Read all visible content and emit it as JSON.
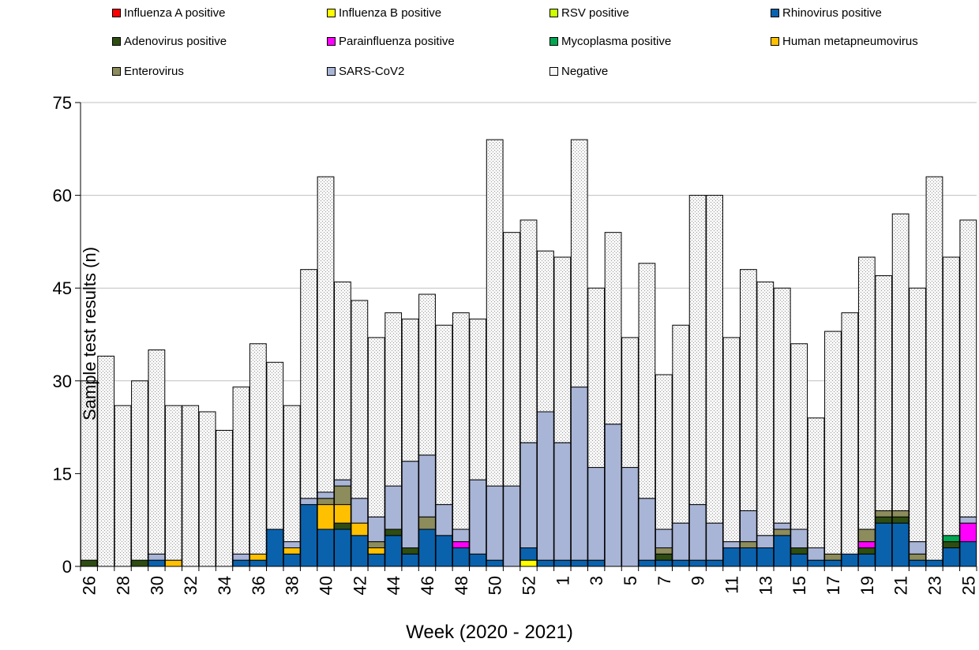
{
  "chart_data": {
    "type": "stacked-bar",
    "xlabel": "Week (2020 - 2021)",
    "ylabel": "Sample test results (n)",
    "ylim": [
      0,
      75
    ],
    "yticks": [
      0,
      15,
      30,
      45,
      60,
      75
    ],
    "grid": true,
    "legend_position": "top",
    "categories": [
      "26",
      "27",
      "28",
      "29",
      "30",
      "31",
      "32",
      "33",
      "34",
      "35",
      "36",
      "37",
      "38",
      "39",
      "40",
      "41",
      "42",
      "43",
      "44",
      "45",
      "46",
      "47",
      "48",
      "49",
      "50",
      "51",
      "52",
      "53",
      "1",
      "2",
      "3",
      "4",
      "5",
      "6",
      "7",
      "8",
      "9",
      "10",
      "11",
      "12",
      "13",
      "14",
      "15",
      "16",
      "17",
      "18",
      "19",
      "20",
      "21",
      "22",
      "23",
      "24",
      "25"
    ],
    "tick_labels": [
      "26",
      "",
      "28",
      "",
      "30",
      "",
      "32",
      "",
      "34",
      "",
      "36",
      "",
      "38",
      "",
      "40",
      "",
      "42",
      "",
      "44",
      "",
      "46",
      "",
      "48",
      "",
      "50",
      "",
      "52",
      "",
      "1",
      "",
      "3",
      "",
      "5",
      "",
      "7",
      "",
      "9",
      "",
      "11",
      "",
      "13",
      "",
      "15",
      "",
      "17",
      "",
      "19",
      "",
      "21",
      "",
      "23",
      "",
      "25"
    ],
    "series": [
      {
        "name": "Influenza A positive",
        "color": "#ff0000",
        "values": [
          0,
          0,
          0,
          0,
          0,
          0,
          0,
          0,
          0,
          0,
          0,
          0,
          0,
          0,
          0,
          0,
          0,
          0,
          0,
          0,
          0,
          0,
          0,
          0,
          0,
          0,
          0,
          0,
          0,
          0,
          0,
          0,
          0,
          0,
          0,
          0,
          0,
          0,
          0,
          0,
          0,
          0,
          0,
          0,
          0,
          0,
          0,
          0,
          0,
          0,
          0,
          0,
          0
        ]
      },
      {
        "name": "Influenza B positive",
        "color": "#ffff00",
        "values": [
          0,
          0,
          0,
          0,
          0,
          0,
          0,
          0,
          0,
          0,
          0,
          0,
          0,
          0,
          0,
          0,
          0,
          0,
          0,
          0,
          0,
          0,
          0,
          0,
          0,
          0,
          1,
          0,
          0,
          0,
          0,
          0,
          0,
          0,
          0,
          0,
          0,
          0,
          0,
          0,
          0,
          0,
          0,
          0,
          0,
          0,
          0,
          0,
          0,
          0,
          0,
          0,
          0
        ]
      },
      {
        "name": "RSV positive",
        "color": "#ccff00",
        "values": [
          0,
          0,
          0,
          0,
          0,
          0,
          0,
          0,
          0,
          0,
          0,
          0,
          0,
          0,
          0,
          0,
          0,
          0,
          0,
          0,
          0,
          0,
          0,
          0,
          0,
          0,
          0,
          0,
          0,
          0,
          0,
          0,
          0,
          0,
          0,
          0,
          0,
          0,
          0,
          0,
          0,
          0,
          0,
          0,
          0,
          0,
          0,
          0,
          0,
          0,
          0,
          0,
          0
        ]
      },
      {
        "name": "Rhinovirus positive",
        "color": "#0a62ad",
        "values": [
          0,
          0,
          0,
          0,
          1,
          0,
          0,
          0,
          0,
          1,
          1,
          6,
          2,
          10,
          6,
          6,
          5,
          2,
          5,
          2,
          6,
          5,
          3,
          2,
          1,
          0,
          2,
          1,
          1,
          1,
          1,
          0,
          0,
          1,
          1,
          1,
          1,
          1,
          3,
          3,
          3,
          5,
          2,
          1,
          1,
          2,
          2,
          7,
          7,
          1,
          1,
          3,
          4
        ]
      },
      {
        "name": "Adenovirus positive",
        "color": "#2e4d12",
        "values": [
          1,
          0,
          0,
          1,
          0,
          0,
          0,
          0,
          0,
          0,
          0,
          0,
          0,
          0,
          0,
          1,
          0,
          0,
          1,
          1,
          0,
          0,
          0,
          0,
          0,
          0,
          0,
          0,
          0,
          0,
          0,
          0,
          0,
          0,
          1,
          0,
          0,
          0,
          0,
          0,
          0,
          0,
          1,
          0,
          0,
          0,
          1,
          1,
          1,
          0,
          0,
          1,
          0
        ]
      },
      {
        "name": "Parainfluenza positive",
        "color": "#ff00ff",
        "values": [
          0,
          0,
          0,
          0,
          0,
          0,
          0,
          0,
          0,
          0,
          0,
          0,
          0,
          0,
          0,
          0,
          0,
          0,
          0,
          0,
          0,
          0,
          1,
          0,
          0,
          0,
          0,
          0,
          0,
          0,
          0,
          0,
          0,
          0,
          0,
          0,
          0,
          0,
          0,
          0,
          0,
          0,
          0,
          0,
          0,
          0,
          1,
          0,
          0,
          0,
          0,
          0,
          3
        ]
      },
      {
        "name": "Mycoplasma positive",
        "color": "#00a651",
        "values": [
          0,
          0,
          0,
          0,
          0,
          0,
          0,
          0,
          0,
          0,
          0,
          0,
          0,
          0,
          0,
          0,
          0,
          0,
          0,
          0,
          0,
          0,
          0,
          0,
          0,
          0,
          0,
          0,
          0,
          0,
          0,
          0,
          0,
          0,
          0,
          0,
          0,
          0,
          0,
          0,
          0,
          0,
          0,
          0,
          0,
          0,
          0,
          0,
          0,
          0,
          0,
          1,
          0
        ]
      },
      {
        "name": "Human metapneumovirus",
        "color": "#ffc000",
        "values": [
          0,
          0,
          0,
          0,
          0,
          1,
          0,
          0,
          0,
          0,
          1,
          0,
          1,
          0,
          4,
          3,
          2,
          1,
          0,
          0,
          0,
          0,
          0,
          0,
          0,
          0,
          0,
          0,
          0,
          0,
          0,
          0,
          0,
          0,
          0,
          0,
          0,
          0,
          0,
          0,
          0,
          0,
          0,
          0,
          0,
          0,
          0,
          0,
          0,
          0,
          0,
          0,
          0
        ]
      },
      {
        "name": "Enterovirus",
        "color": "#8c8c5c",
        "values": [
          0,
          0,
          0,
          0,
          0,
          0,
          0,
          0,
          0,
          0,
          0,
          0,
          0,
          0,
          1,
          3,
          0,
          1,
          0,
          0,
          2,
          0,
          0,
          0,
          0,
          0,
          0,
          0,
          0,
          0,
          0,
          0,
          0,
          0,
          1,
          0,
          0,
          0,
          0,
          1,
          0,
          1,
          0,
          0,
          1,
          0,
          2,
          1,
          1,
          1,
          0,
          0,
          0
        ]
      },
      {
        "name": "SARS-CoV2",
        "color": "#a9b5d6",
        "values": [
          0,
          0,
          0,
          0,
          1,
          0,
          0,
          0,
          0,
          1,
          0,
          0,
          1,
          1,
          1,
          1,
          4,
          4,
          7,
          14,
          10,
          5,
          2,
          12,
          12,
          13,
          17,
          24,
          19,
          28,
          15,
          23,
          16,
          10,
          3,
          6,
          9,
          6,
          1,
          5,
          2,
          1,
          3,
          2,
          0,
          0,
          0,
          0,
          0,
          2,
          0,
          0,
          1
        ]
      },
      {
        "name": "Negative",
        "color": "#f2f2f2",
        "pattern": "dotted",
        "values": [
          29,
          34,
          26,
          29,
          33,
          25,
          26,
          25,
          22,
          27,
          34,
          27,
          22,
          37,
          51,
          32,
          32,
          29,
          28,
          23,
          26,
          29,
          35,
          26,
          56,
          41,
          36,
          26,
          30,
          40,
          29,
          31,
          21,
          38,
          25,
          32,
          50,
          53,
          33,
          39,
          41,
          38,
          30,
          21,
          36,
          39,
          44,
          38,
          48,
          41,
          62,
          45,
          48
        ]
      }
    ]
  }
}
